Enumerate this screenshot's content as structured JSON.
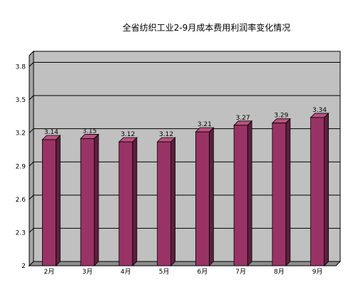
{
  "chart_data": {
    "type": "bar",
    "title": "全省纺织工业2-9月成本费用利润率变化情况",
    "categories": [
      "2月",
      "3月",
      "4月",
      "5月",
      "6月",
      "7月",
      "8月",
      "9月"
    ],
    "values": [
      3.14,
      3.15,
      3.12,
      3.12,
      3.21,
      3.27,
      3.29,
      3.34
    ],
    "value_labels": [
      "3.14",
      "3.15",
      "3.12",
      "3.12",
      "3.21",
      "3.27",
      "3.29",
      "3.34"
    ],
    "yticks": [
      "2",
      "2.3",
      "2.6",
      "2.9",
      "3.2",
      "3.5",
      "3.8"
    ],
    "ylim": [
      2,
      3.9
    ],
    "xlabel": "",
    "ylabel": "",
    "grid": true,
    "legend": "none",
    "colors": {
      "bar_front": "#993366",
      "bar_side": "#5e1f3e",
      "bar_top": "#b9527f",
      "plot_back": "#c0c0c0",
      "plot_floor": "#8c8c8c",
      "plot_wall": "#a6a6a6",
      "gridline": "#000000"
    }
  }
}
